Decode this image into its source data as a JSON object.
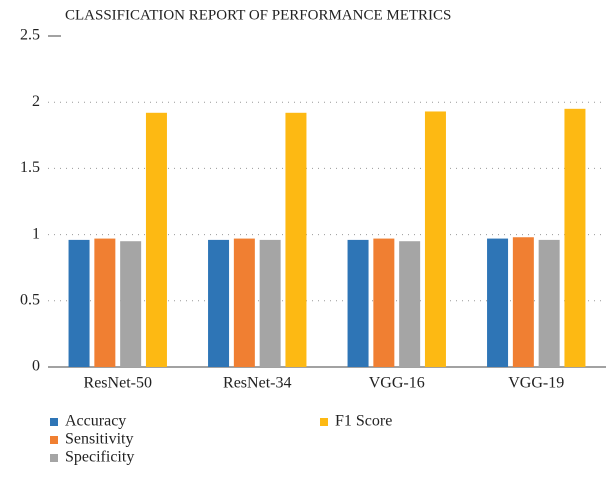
{
  "chart_data": {
    "type": "bar",
    "title": "CLASSIFICATION REPORT OF PERFORMANCE METRICS",
    "categories": [
      "ResNet-50",
      "ResNet-34",
      "VGG-16",
      "VGG-19"
    ],
    "series": [
      {
        "name": "Accuracy",
        "color": "#2e75b6",
        "values": [
          0.96,
          0.96,
          0.96,
          0.97
        ]
      },
      {
        "name": "Sensitivity",
        "color": "#f07f32",
        "values": [
          0.97,
          0.97,
          0.97,
          0.98
        ]
      },
      {
        "name": "Specificity",
        "color": "#a5a5a5",
        "values": [
          0.95,
          0.96,
          0.95,
          0.96
        ]
      },
      {
        "name": "F1 Score",
        "color": "#fdb913",
        "values": [
          1.92,
          1.92,
          1.93,
          1.95
        ]
      }
    ],
    "ylim": [
      0,
      2.5
    ],
    "yticks": [
      0,
      0.5,
      1,
      1.5,
      2,
      2.5
    ],
    "grid": true,
    "legend": "bottom"
  }
}
